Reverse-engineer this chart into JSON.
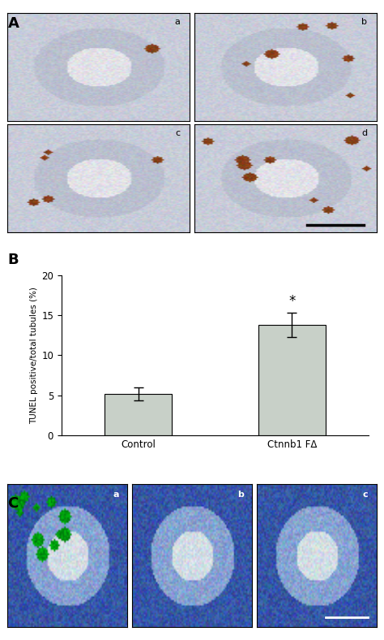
{
  "panel_A_label": "A",
  "panel_B_label": "B",
  "panel_C_label": "C",
  "bar_categories": [
    "Control",
    "Ctnnb1 FΔ"
  ],
  "bar_values": [
    5.15,
    13.8
  ],
  "bar_errors": [
    0.8,
    1.5
  ],
  "bar_color": "#c8d0c8",
  "bar_edgecolor": "#000000",
  "ylabel": "TUNEL positive/total tubules (%)",
  "ylim": [
    0,
    20
  ],
  "yticks": [
    0,
    5,
    10,
    15,
    20
  ],
  "significance_label": "*",
  "subplot_labels_A": [
    "a",
    "b",
    "c",
    "d"
  ],
  "subplot_labels_C": [
    "a",
    "b",
    "c"
  ],
  "bg_color": "#ffffff"
}
